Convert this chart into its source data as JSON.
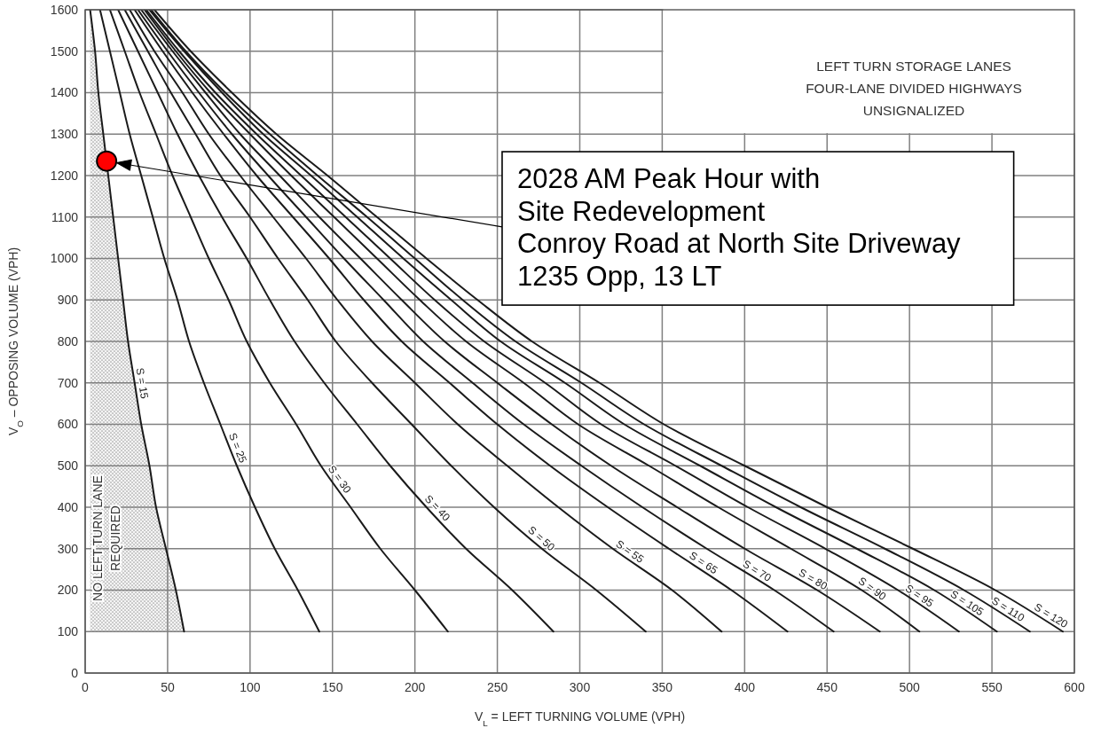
{
  "chart_data": {
    "type": "line",
    "title": "LEFT TURN STORAGE LANES\nFOUR-LANE DIVIDED HIGHWAYS\nUNSIGNALIZED",
    "xlabel": "V$_{L}$ = LEFT TURNING VOLUME (VPH)",
    "ylabel": "V$_{O}$ – OPPOSING VOLUME (VPH)",
    "xlim": [
      0,
      600
    ],
    "ylim": [
      0,
      1600
    ],
    "xticks": [
      0,
      50,
      100,
      150,
      200,
      250,
      300,
      350,
      400,
      450,
      500,
      550,
      600
    ],
    "yticks": [
      0,
      100,
      200,
      300,
      400,
      500,
      600,
      700,
      800,
      900,
      1000,
      1100,
      1200,
      1300,
      1400,
      1500,
      1600
    ],
    "grid": true,
    "series": [
      {
        "name": "S = 15",
        "color": "#1a1a1a",
        "x": [
          3,
          6,
          8,
          11,
          14,
          17,
          20,
          23,
          26,
          30,
          34,
          39,
          43,
          49,
          55,
          60
        ],
        "values": [
          1600,
          1500,
          1400,
          1300,
          1200,
          1100,
          1000,
          900,
          800,
          700,
          600,
          500,
          400,
          300,
          200,
          100
        ],
        "lower": [
          100,
          100,
          100,
          100,
          100,
          100,
          100,
          100,
          100,
          100,
          100,
          100,
          100,
          100,
          100,
          100
        ],
        "upper": [
          1600,
          1500,
          1400,
          1300,
          1200,
          1100,
          1000,
          900,
          800,
          700,
          600,
          500,
          400,
          300,
          200,
          100
        ]
      },
      {
        "name": "S = 25",
        "color": "#1a1a1a",
        "x": [
          9,
          15,
          21,
          27,
          34,
          41,
          48,
          56,
          63,
          72,
          82,
          92,
          103,
          115,
          129,
          142
        ],
        "values": [
          1600,
          1500,
          1400,
          1300,
          1200,
          1100,
          1000,
          900,
          800,
          700,
          600,
          500,
          400,
          300,
          200,
          100
        ]
      },
      {
        "name": "S = 30",
        "color": "#1a1a1a",
        "x": [
          15,
          24,
          33,
          43,
          53,
          64,
          75,
          87,
          98,
          112,
          128,
          143,
          161,
          179,
          200,
          220
        ],
        "values": [
          1600,
          1500,
          1400,
          1300,
          1200,
          1100,
          1000,
          900,
          800,
          700,
          600,
          500,
          400,
          300,
          200,
          100
        ]
      },
      {
        "name": "S = 40",
        "color": "#1a1a1a",
        "x": [
          20,
          32,
          44,
          56,
          69,
          83,
          98,
          112,
          127,
          145,
          165,
          185,
          207,
          231,
          259,
          284
        ],
        "values": [
          1600,
          1500,
          1400,
          1300,
          1200,
          1100,
          1000,
          900,
          800,
          700,
          600,
          500,
          400,
          300,
          200,
          100
        ]
      },
      {
        "name": "S = 50",
        "color": "#1a1a1a",
        "x": [
          24,
          38,
          52,
          67,
          82,
          100,
          117,
          135,
          152,
          174,
          198,
          222,
          248,
          277,
          310,
          340
        ],
        "values": [
          1600,
          1500,
          1400,
          1300,
          1200,
          1100,
          1000,
          900,
          800,
          700,
          600,
          500,
          400,
          300,
          200,
          100
        ]
      },
      {
        "name": "S = 55",
        "color": "#1a1a1a",
        "x": [
          27,
          42,
          59,
          75,
          94,
          114,
          134,
          153,
          174,
          200,
          226,
          256,
          287,
          320,
          356,
          386
        ],
        "values": [
          1600,
          1500,
          1400,
          1300,
          1200,
          1100,
          1000,
          900,
          800,
          700,
          600,
          500,
          400,
          300,
          200,
          100
        ]
      },
      {
        "name": "S = 65",
        "color": "#1a1a1a",
        "x": [
          30,
          47,
          65,
          84,
          104,
          126,
          148,
          169,
          192,
          221,
          250,
          282,
          317,
          354,
          392,
          426
        ],
        "values": [
          1600,
          1500,
          1400,
          1300,
          1200,
          1100,
          1000,
          900,
          800,
          700,
          600,
          500,
          400,
          300,
          200,
          100
        ]
      },
      {
        "name": "S = 70",
        "color": "#1a1a1a",
        "x": [
          32,
          50,
          69,
          89,
          111,
          134,
          157,
          181,
          205,
          235,
          266,
          301,
          338,
          377,
          418,
          454
        ],
        "values": [
          1600,
          1500,
          1400,
          1300,
          1200,
          1100,
          1000,
          900,
          800,
          700,
          600,
          500,
          400,
          300,
          200,
          100
        ]
      },
      {
        "name": "S = 80",
        "color": "#1a1a1a",
        "x": [
          34,
          53,
          73,
          94,
          118,
          142,
          167,
          192,
          218,
          250,
          283,
          319,
          359,
          400,
          444,
          482
        ],
        "values": [
          1600,
          1500,
          1400,
          1300,
          1200,
          1100,
          1000,
          900,
          800,
          700,
          600,
          500,
          400,
          300,
          200,
          100
        ]
      },
      {
        "name": "S = 90",
        "color": "#1a1a1a",
        "x": [
          36,
          55,
          76,
          100,
          125,
          151,
          177,
          203,
          231,
          266,
          299,
          342,
          384,
          428,
          471,
          506
        ],
        "values": [
          1600,
          1500,
          1400,
          1300,
          1200,
          1100,
          1000,
          900,
          800,
          700,
          600,
          500,
          400,
          300,
          200,
          100
        ]
      },
      {
        "name": "S = 95",
        "color": "#1a1a1a",
        "x": [
          37,
          57,
          79,
          104,
          131,
          158,
          185,
          212,
          242,
          279,
          313,
          358,
          402,
          449,
          493,
          530
        ],
        "values": [
          1600,
          1500,
          1400,
          1300,
          1200,
          1100,
          1000,
          900,
          800,
          700,
          600,
          500,
          400,
          300,
          200,
          100
        ]
      },
      {
        "name": "S = 105",
        "color": "#1a1a1a",
        "x": [
          39,
          60,
          83,
          108,
          137,
          165,
          193,
          222,
          252,
          291,
          327,
          373,
          419,
          468,
          515,
          553
        ],
        "values": [
          1600,
          1500,
          1400,
          1300,
          1200,
          1100,
          1000,
          900,
          800,
          700,
          600,
          500,
          400,
          300,
          200,
          100
        ]
      },
      {
        "name": "S = 110",
        "color": "#1a1a1a",
        "x": [
          40,
          61,
          85,
          112,
          141,
          171,
          200,
          229,
          261,
          301,
          339,
          386,
          434,
          485,
          533,
          573
        ],
        "values": [
          1600,
          1500,
          1400,
          1300,
          1200,
          1100,
          1000,
          900,
          800,
          700,
          600,
          500,
          400,
          300,
          200,
          100
        ]
      },
      {
        "name": "S = 120",
        "color": "#1a1a1a",
        "x": [
          42,
          64,
          89,
          116,
          147,
          177,
          207,
          238,
          271,
          312,
          351,
          400,
          450,
          502,
          552,
          593
        ],
        "values": [
          1600,
          1500,
          1400,
          1300,
          1200,
          1100,
          1000,
          900,
          800,
          700,
          600,
          500,
          400,
          300,
          200,
          100
        ]
      },
      {
        "type": "scatter",
        "marker": "circle",
        "color": "#ff0000",
        "x": [
          13
        ],
        "values": [
          1235
        ]
      }
    ],
    "annotations": [
      "2028 AM Peak Hour with\nSite Redevelopment\nConroy Road at North Site Driveway\n1235 Opp, 13 LT",
      "NO LEFT TURN LANE\nREQUIRED"
    ]
  }
}
